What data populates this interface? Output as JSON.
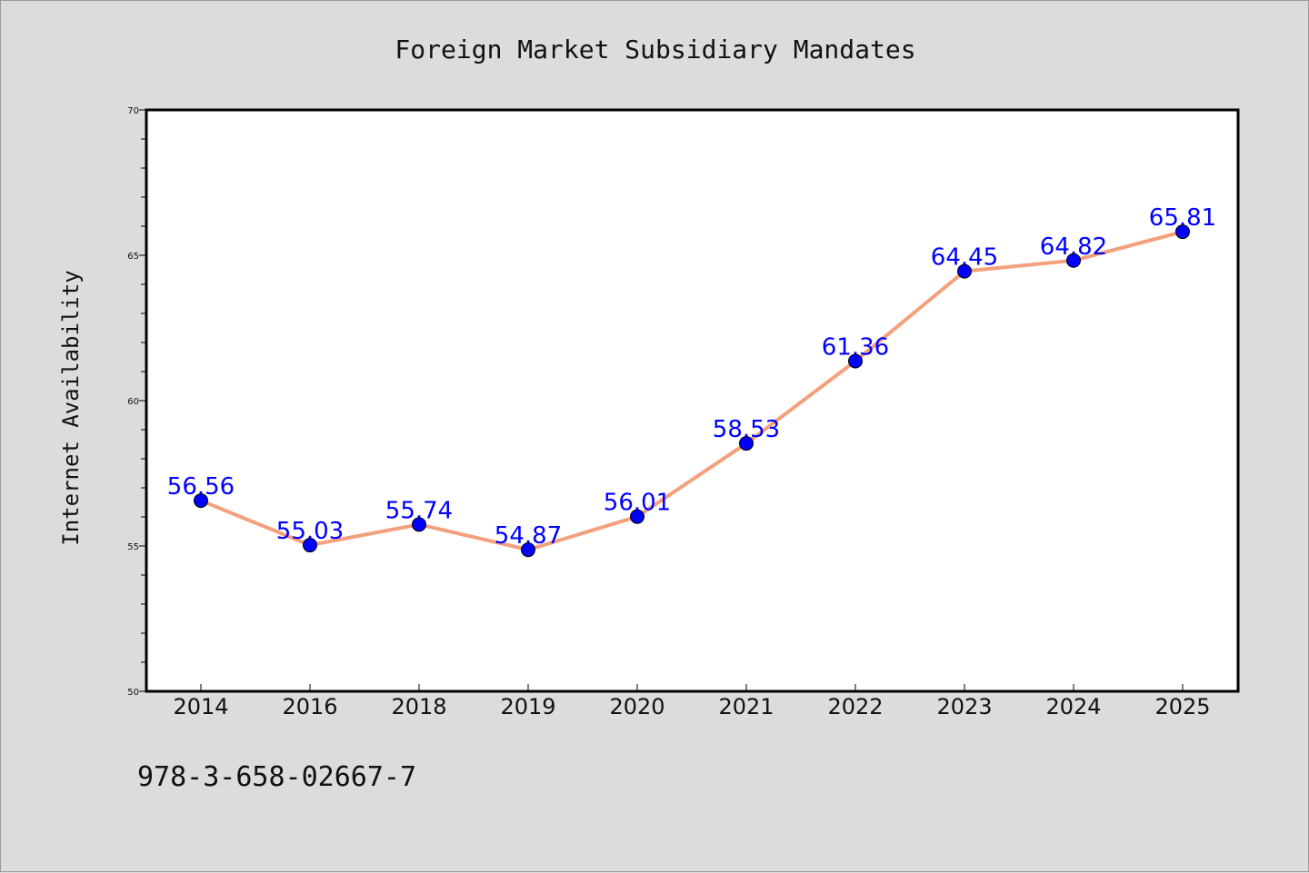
{
  "chart_data": {
    "type": "line",
    "title": "Foreign Market Subsidiary Mandates",
    "xlabel": "",
    "ylabel": "Internet Availability",
    "categories": [
      "2014",
      "2016",
      "2018",
      "2019",
      "2020",
      "2021",
      "2022",
      "2023",
      "2024",
      "2025"
    ],
    "series": [
      {
        "values": [
          56.56,
          55.03,
          55.74,
          54.87,
          56.01,
          58.53,
          61.36,
          64.45,
          64.82,
          65.81
        ],
        "data_labels": [
          "56.56",
          "55.03",
          "55.74",
          "54.87",
          "56.01",
          "58.53",
          "61.36",
          "64.45",
          "64.82",
          "65.81"
        ],
        "line_color": "#f4a07c",
        "marker_color": "#0000ff"
      }
    ],
    "ylim": [
      50,
      70
    ],
    "yticks": [
      "50",
      "55",
      "60",
      "65",
      "70"
    ],
    "grid": false,
    "legend": "none"
  },
  "footer_text": "978-3-658-02667-7"
}
